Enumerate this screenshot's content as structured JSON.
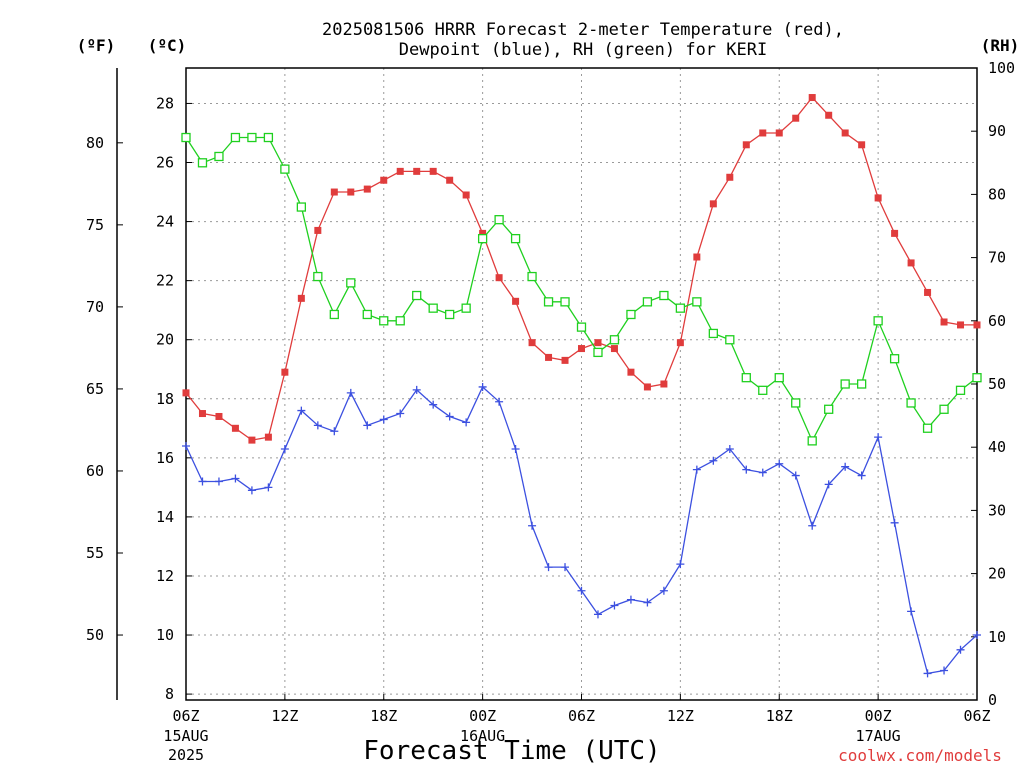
{
  "chart_data": {
    "type": "line",
    "title_line1": "2025081506 HRRR Forecast 2-meter Temperature (red),",
    "title_line2": "Dewpoint (blue), RH (green) for KERI",
    "units": {
      "f": "(ºF)",
      "c": "(ºC)",
      "rh": "(RH)"
    },
    "xlabel": "Forecast Time (UTC)",
    "credit": "coolwx.com/models",
    "hour_range": [
      0,
      48
    ],
    "x_ticks": [
      {
        "h": 0,
        "label": "06Z",
        "label2": "15AUG",
        "label3": "2025"
      },
      {
        "h": 6,
        "label": "12Z"
      },
      {
        "h": 12,
        "label": "18Z"
      },
      {
        "h": 18,
        "label": "00Z",
        "label2": "16AUG"
      },
      {
        "h": 24,
        "label": "06Z"
      },
      {
        "h": 30,
        "label": "12Z"
      },
      {
        "h": 36,
        "label": "18Z"
      },
      {
        "h": 42,
        "label": "00Z",
        "label2": "17AUG"
      },
      {
        "h": 48,
        "label": "06Z"
      }
    ],
    "celsius_axis": {
      "range": [
        7.8,
        29.2
      ],
      "ticks": [
        "8",
        "10",
        "12",
        "14",
        "16",
        "18",
        "20",
        "22",
        "24",
        "26",
        "28"
      ]
    },
    "fahrenheit_axis": {
      "ticks": [
        "50",
        "55",
        "60",
        "65",
        "70",
        "75",
        "80"
      ]
    },
    "rh_axis": {
      "range": [
        0,
        100
      ],
      "ticks": [
        "0",
        "10",
        "20",
        "30",
        "40",
        "50",
        "60",
        "70",
        "80",
        "90",
        "100"
      ]
    },
    "grid": true,
    "series": [
      {
        "name": "Temperature",
        "axis": "celsius",
        "color": "#e03c3c",
        "marker": "filled-square",
        "values": [
          18.2,
          17.5,
          17.4,
          17.0,
          16.6,
          16.7,
          18.9,
          21.4,
          23.7,
          25.0,
          25.0,
          25.1,
          25.4,
          25.7,
          25.7,
          25.7,
          25.4,
          24.9,
          23.6,
          22.1,
          21.3,
          19.9,
          19.4,
          19.3,
          19.7,
          19.9,
          19.7,
          18.9,
          18.4,
          18.5,
          19.9,
          22.8,
          24.6,
          25.5,
          26.6,
          27.0,
          27.0,
          27.5,
          28.2,
          27.6,
          27.0,
          26.6,
          24.8,
          23.6,
          22.6,
          21.6,
          20.6,
          20.5,
          20.5
        ]
      },
      {
        "name": "Dewpoint",
        "axis": "celsius",
        "color": "#3c50e0",
        "marker": "plus",
        "values": [
          16.4,
          15.2,
          15.2,
          15.3,
          14.9,
          15.0,
          16.3,
          17.6,
          17.1,
          16.9,
          18.2,
          17.1,
          17.3,
          17.5,
          18.3,
          17.8,
          17.4,
          17.2,
          18.4,
          17.9,
          16.3,
          13.7,
          12.3,
          12.3,
          11.5,
          10.7,
          11.0,
          11.2,
          11.1,
          11.5,
          12.4,
          15.6,
          15.9,
          16.3,
          15.6,
          15.5,
          15.8,
          15.4,
          13.7,
          15.1,
          15.7,
          15.4,
          16.7,
          13.8,
          10.8,
          8.7,
          8.8,
          9.5,
          10.0
        ]
      },
      {
        "name": "RH",
        "axis": "rh",
        "color": "#1fd01f",
        "marker": "open-square",
        "values": [
          89,
          85,
          86,
          89,
          89,
          89,
          84,
          78,
          67,
          61,
          66,
          61,
          60,
          60,
          64,
          62,
          61,
          62,
          73,
          76,
          73,
          67,
          63,
          63,
          59,
          55,
          57,
          61,
          63,
          64,
          62,
          63,
          58,
          57,
          51,
          49,
          51,
          47,
          41,
          46,
          50,
          50,
          60,
          54,
          47,
          43,
          46,
          49,
          51
        ]
      }
    ]
  }
}
